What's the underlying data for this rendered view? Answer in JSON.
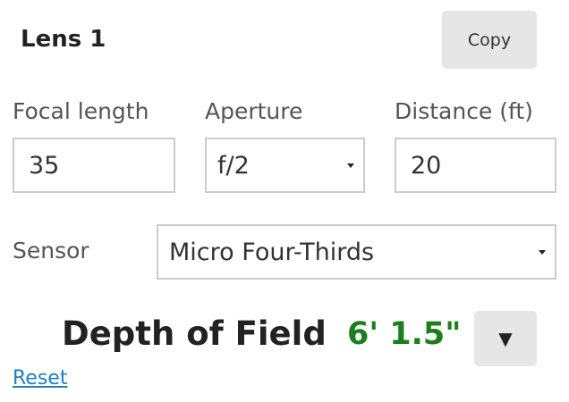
{
  "lens": {
    "title": "Lens 1",
    "copy_label": "Copy"
  },
  "fields": {
    "focal_length": {
      "label": "Focal length",
      "value": "35"
    },
    "aperture": {
      "label": "Aperture",
      "value": "f/2"
    },
    "distance": {
      "label": "Distance (ft)",
      "value": "20"
    }
  },
  "sensor": {
    "label": "Sensor",
    "value": "Micro Four-Thirds"
  },
  "result": {
    "label": "Depth of Field",
    "value": "6' 1.5\"",
    "value_color": "#1a7f1a",
    "toggle_icon": "triangle-down",
    "toggle_glyph": "▼"
  },
  "reset_label": "Reset"
}
